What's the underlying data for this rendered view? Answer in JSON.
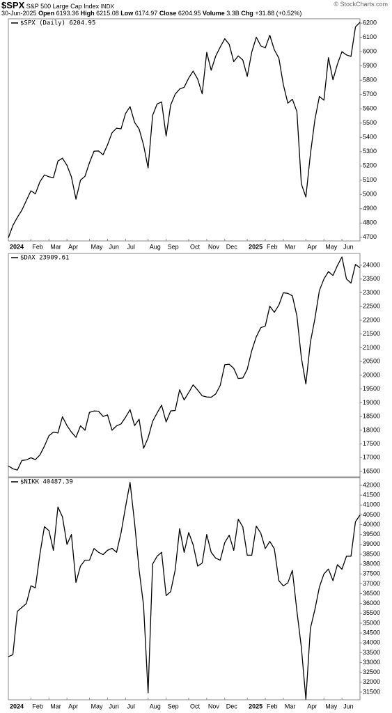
{
  "header": {
    "symbol": "$SPX",
    "name": "S&P 500 Large Cap Index",
    "exchange": "INDX",
    "watermark": "© StockCharts.com",
    "date": "30-Jun-2025",
    "stats": [
      {
        "label": "Open",
        "value": "6193.36"
      },
      {
        "label": "High",
        "value": "6215.08"
      },
      {
        "label": "Low",
        "value": "6174.97"
      },
      {
        "label": "Close",
        "value": "6204.95"
      },
      {
        "label": "Volume",
        "value": "3.3B"
      },
      {
        "label": "Chg",
        "value": "+31.88 (+0.52%)"
      }
    ]
  },
  "chart_data": [
    {
      "type": "line",
      "title": "$SPX (Daily) 6204.95",
      "color": "#000000",
      "categories": [
        "2024",
        null,
        null,
        null,
        null,
        "Feb",
        null,
        null,
        null,
        "Mar",
        null,
        null,
        null,
        "Apr",
        null,
        null,
        null,
        null,
        "May",
        null,
        null,
        null,
        "Jun",
        null,
        null,
        null,
        "Jul",
        null,
        null,
        null,
        null,
        "Aug",
        null,
        null,
        null,
        "Sep",
        null,
        null,
        null,
        null,
        "Oct",
        null,
        null,
        null,
        "Nov",
        null,
        null,
        null,
        "Dec",
        null,
        null,
        null,
        null,
        "2025",
        null,
        null,
        null,
        "Feb",
        null,
        null,
        null,
        "Mar",
        null,
        null,
        null,
        null,
        "Apr",
        null,
        null,
        null,
        "May",
        null,
        null,
        null,
        "Jun",
        null,
        null,
        null,
        null
      ],
      "values": [
        4697,
        4783,
        4840,
        4890,
        4958,
        5026,
        5005,
        5089,
        5137,
        5124,
        5117,
        5234,
        5254,
        5204,
        5123,
        4967,
        5100,
        5128,
        5223,
        5303,
        5305,
        5278,
        5347,
        5432,
        5464,
        5460,
        5567,
        5615,
        5505,
        5459,
        5346,
        5186,
        5554,
        5634,
        5648,
        5408,
        5626,
        5702,
        5738,
        5751,
        5815,
        5864,
        5808,
        5705,
        5995,
        5870,
        5969,
        6032,
        6090,
        6051,
        5930,
        5970,
        5942,
        5827,
        5997,
        6101,
        6041,
        6026,
        6115,
        6013,
        5955,
        5770,
        5639,
        5667,
        5581,
        5074,
        4982,
        5282,
        5525,
        5686,
        5660,
        5958,
        5803,
        5912,
        6000,
        5977,
        5967,
        6173,
        6205
      ],
      "ylim": [
        4675,
        6230
      ],
      "yticks": [
        4700,
        4800,
        4900,
        5000,
        5100,
        5200,
        5300,
        5400,
        5500,
        5600,
        5700,
        5800,
        5900,
        6000,
        6100,
        6200
      ]
    },
    {
      "type": "line",
      "title": "$DAX 23909.61",
      "color": "#000000",
      "values": [
        16700,
        16600,
        16550,
        16900,
        16920,
        17000,
        16930,
        17100,
        17420,
        17800,
        17930,
        17900,
        18490,
        18170,
        17930,
        17740,
        18160,
        18000,
        18650,
        18700,
        18690,
        18500,
        18560,
        18000,
        18160,
        18230,
        18470,
        18750,
        18170,
        18400,
        17340,
        17720,
        18320,
        18630,
        18910,
        18300,
        18700,
        18720,
        19470,
        19100,
        19370,
        19650,
        19460,
        19250,
        19210,
        19200,
        19320,
        19630,
        20380,
        20400,
        20250,
        19880,
        19900,
        20215,
        20900,
        21400,
        21730,
        21790,
        22510,
        22290,
        22550,
        23000,
        22980,
        22890,
        22160,
        20640,
        19680,
        21200,
        22060,
        23080,
        23500,
        23770,
        23630,
        23990,
        24300,
        23500,
        23350,
        24030,
        23910
      ],
      "ylim": [
        16300,
        24430
      ],
      "yticks": [
        16500,
        17000,
        17500,
        18000,
        18500,
        19000,
        19500,
        20000,
        20500,
        21000,
        21500,
        22000,
        22500,
        23000,
        23500,
        24000
      ]
    },
    {
      "type": "line",
      "title": "$NIKK 40487.39",
      "color": "#000000",
      "categories": [
        "2024",
        null,
        null,
        null,
        null,
        "Feb",
        null,
        null,
        null,
        "Mar",
        null,
        null,
        null,
        "Apr",
        null,
        null,
        null,
        null,
        "May",
        null,
        null,
        null,
        "Jun",
        null,
        null,
        null,
        "Jul",
        null,
        null,
        null,
        null,
        "Aug",
        null,
        null,
        null,
        "Sep",
        null,
        null,
        null,
        null,
        "Oct",
        null,
        null,
        null,
        "Nov",
        null,
        null,
        null,
        "Dec",
        null,
        null,
        null,
        null,
        "2025",
        null,
        null,
        null,
        "Feb",
        null,
        null,
        null,
        "Mar",
        null,
        null,
        null,
        null,
        "Apr",
        null,
        null,
        null,
        "May",
        null,
        null,
        null,
        "Jun",
        null,
        null,
        null,
        null
      ],
      "values": [
        33300,
        33400,
        35600,
        35800,
        36000,
        36900,
        36800,
        38500,
        39900,
        39700,
        38700,
        40900,
        40400,
        39000,
        39500,
        37070,
        37900,
        38200,
        38200,
        38790,
        38600,
        38480,
        38700,
        38800,
        38600,
        39600,
        40900,
        42150,
        40100,
        37700,
        35900,
        31460,
        38000,
        38400,
        38600,
        36400,
        36600,
        37700,
        39800,
        38600,
        39600,
        38980,
        37900,
        38050,
        39500,
        38600,
        38300,
        38200,
        39090,
        39470,
        38700,
        40280,
        39890,
        38450,
        38450,
        39930,
        39570,
        38790,
        39150,
        38780,
        37160,
        36890,
        37050,
        37680,
        35620,
        33780,
        31130,
        34730,
        35700,
        36830,
        37500,
        37750,
        37160,
        37970,
        37740,
        38400,
        38400,
        40150,
        40487
      ],
      "ylim": [
        31110,
        42390
      ],
      "yticks": [
        31500,
        32000,
        32500,
        33000,
        33500,
        34000,
        34500,
        35000,
        35500,
        36000,
        36500,
        37000,
        37500,
        38000,
        38500,
        39000,
        39500,
        40000,
        40500,
        41000,
        41500,
        42000
      ]
    }
  ]
}
